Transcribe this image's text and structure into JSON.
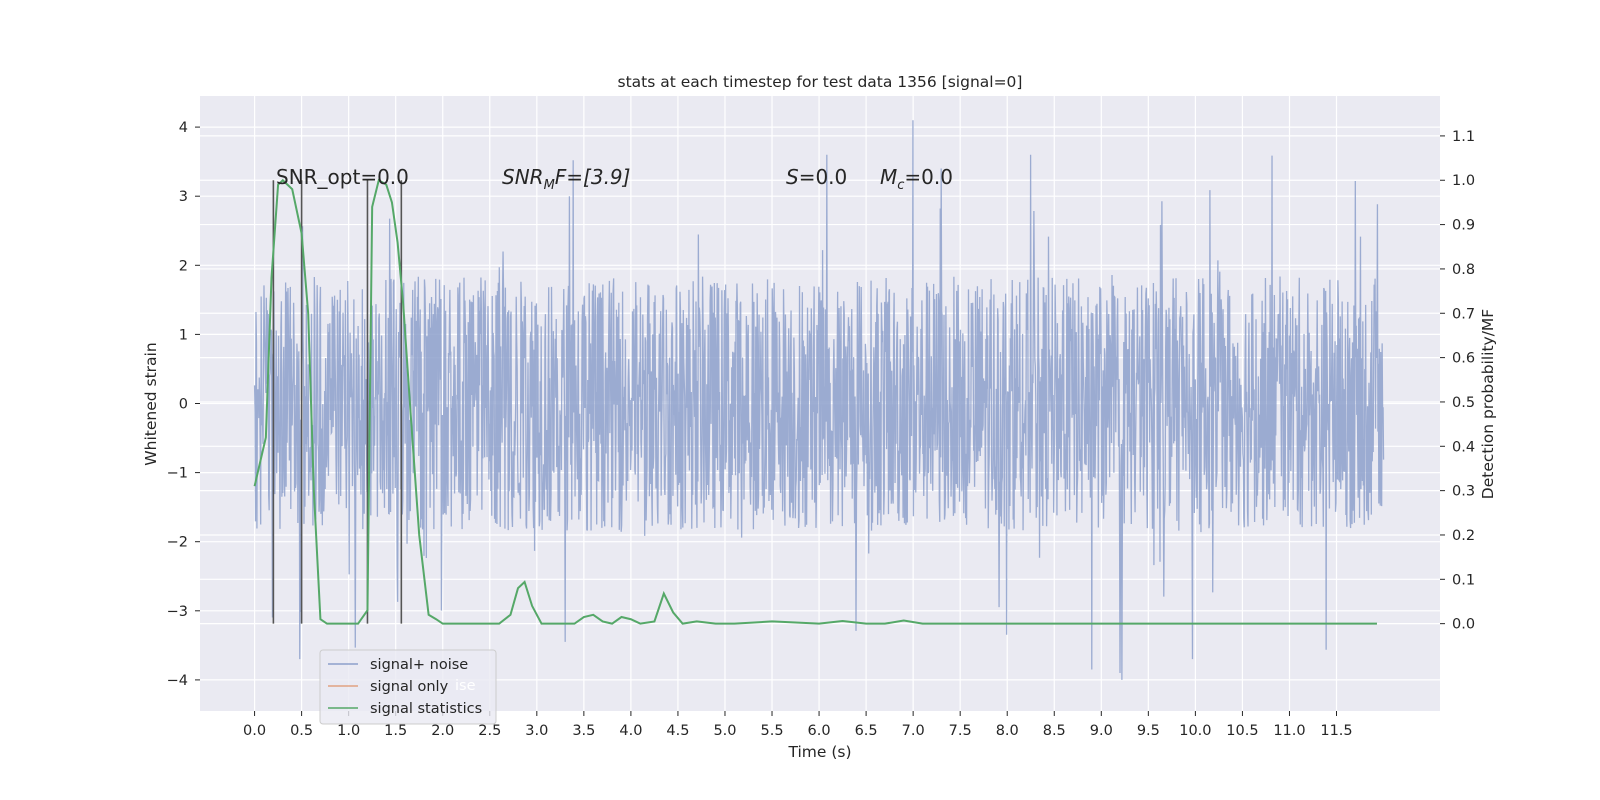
{
  "chart_data": {
    "type": "line",
    "title": "stats at each timestep for test data 1356 [signal=0]",
    "xlabel": "Time (s)",
    "ylabel": "Whitened strain",
    "y2label": "Detection probability/MF",
    "xlim": [
      -0.58,
      12.6
    ],
    "ylim": [
      -4.45,
      4.45
    ],
    "y2lim": [
      -0.197,
      1.19
    ],
    "x_ticks": [
      "0.0",
      "0.5",
      "1.0",
      "1.5",
      "2.0",
      "2.5",
      "3.0",
      "3.5",
      "4.0",
      "4.5",
      "5.0",
      "5.5",
      "6.0",
      "6.5",
      "7.0",
      "7.5",
      "8.0",
      "8.5",
      "9.0",
      "9.5",
      "10.0",
      "10.5",
      "11.0",
      "11.5"
    ],
    "y_ticks": [
      "4",
      "3",
      "2",
      "1",
      "0",
      "−1",
      "−2",
      "−3",
      "−4"
    ],
    "y2_ticks": [
      "1.1",
      "1.0",
      "0.9",
      "0.8",
      "0.7",
      "0.6",
      "0.5",
      "0.4",
      "0.3",
      "0.2",
      "0.1",
      "0.0"
    ],
    "grid": true,
    "legend_position": "lower-left",
    "annotations": {
      "snr_opt": "SNR_opt=0.0",
      "snr_mf_main": "SNR",
      "snr_mf_sub": "M",
      "snr_mf_rest": "F=[3.9]",
      "s_italic": "S",
      "s_rest": "=0.0",
      "mc_main": "M",
      "mc_sub": "c",
      "mc_rest": "=0.0"
    },
    "vertical_markers": [
      0.2,
      0.5,
      1.2,
      1.56
    ],
    "noise_series": {
      "name": "signal+ noise",
      "color": "#8da0cb",
      "x_start": 0.0,
      "x_end": 12.0,
      "sample_count": 2400,
      "band_min": -2.0,
      "band_max": 2.0,
      "extreme_max": 4.1,
      "extreme_min": -4.0,
      "highlights": [
        [
          7.0,
          4.1
        ],
        [
          9.22,
          -4.0
        ],
        [
          9.2,
          -3.9
        ],
        [
          8.9,
          -3.85
        ],
        [
          3.3,
          -3.45
        ],
        [
          7.3,
          3.4
        ],
        [
          8.25,
          3.6
        ]
      ]
    },
    "series": [
      {
        "name": "signal only",
        "color": "#dd8452",
        "x": [],
        "y": []
      },
      {
        "name": "signal statistics",
        "color": "#55a868",
        "axis": "right",
        "x": [
          0.0,
          0.12,
          0.18,
          0.25,
          0.3,
          0.4,
          0.5,
          0.57,
          0.63,
          0.7,
          0.77,
          0.82,
          0.9,
          1.0,
          1.1,
          1.2,
          1.25,
          1.32,
          1.4,
          1.46,
          1.52,
          1.58,
          1.66,
          1.75,
          1.85,
          1.93,
          2.0,
          2.3,
          2.6,
          2.72,
          2.8,
          2.87,
          2.95,
          3.05,
          3.2,
          3.4,
          3.5,
          3.6,
          3.7,
          3.8,
          3.9,
          4.0,
          4.1,
          4.25,
          4.35,
          4.45,
          4.55,
          4.7,
          4.9,
          5.1,
          5.5,
          6.0,
          6.25,
          6.5,
          6.7,
          6.9,
          7.1,
          7.5,
          8.0,
          11.93
        ],
        "y": [
          0.31,
          0.42,
          0.78,
          0.99,
          1.0,
          0.98,
          0.88,
          0.7,
          0.3,
          0.01,
          0.0,
          0.0,
          0.0,
          0.0,
          0.0,
          0.03,
          0.94,
          1.0,
          0.99,
          0.95,
          0.86,
          0.72,
          0.47,
          0.2,
          0.02,
          0.01,
          0.0,
          0.0,
          0.0,
          0.02,
          0.08,
          0.094,
          0.04,
          0.0,
          0.0,
          0.0,
          0.015,
          0.02,
          0.005,
          0.0,
          0.015,
          0.01,
          0.0,
          0.005,
          0.068,
          0.025,
          0.0,
          0.005,
          0.0,
          0.0,
          0.005,
          0.0,
          0.006,
          0.0,
          0.0,
          0.007,
          0.0,
          0.0,
          0.0,
          0.0
        ]
      }
    ]
  },
  "legend": [
    {
      "label": "signal+ noise",
      "color": "#8da0cb"
    },
    {
      "label": "signal only",
      "color": "#dd8452"
    },
    {
      "label": "signal statistics",
      "color": "#55a868"
    }
  ],
  "legend_ghost_text": "ise"
}
